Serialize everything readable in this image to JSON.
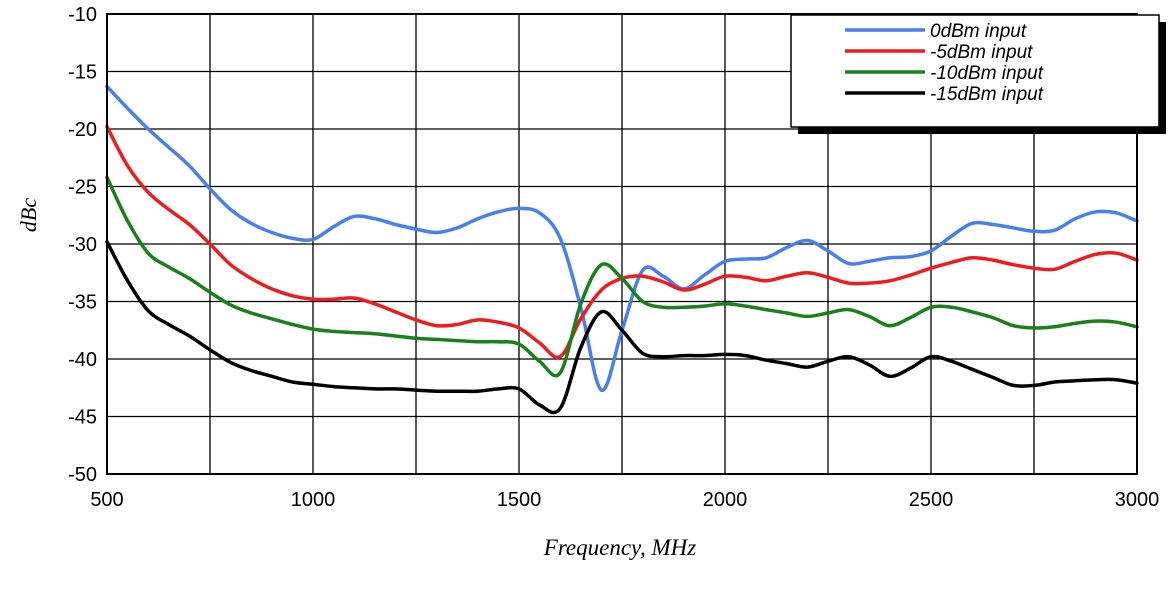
{
  "chart_data": {
    "type": "line",
    "xlabel": "Frequency, MHz",
    "ylabel": "dBc",
    "xlim": [
      500,
      3000
    ],
    "ylim": [
      -50,
      -10
    ],
    "x_ticks": [
      500,
      1000,
      1500,
      2000,
      2500,
      3000
    ],
    "x_tick_labels": [
      "500",
      "1000",
      "1500",
      "2000",
      "2500",
      "3000"
    ],
    "y_ticks": [
      -10,
      -15,
      -20,
      -25,
      -30,
      -35,
      -40,
      -45,
      -50
    ],
    "y_tick_labels": [
      "-10",
      "-15",
      "-20",
      "-25",
      "-30",
      "-35",
      "-40",
      "-45",
      "-50"
    ],
    "x_grid_step": 250,
    "grid": true,
    "legend_position": "top-right",
    "series": [
      {
        "name": "0dBm input",
        "color": "#4a7ef0",
        "points": [
          [
            500,
            -16.3
          ],
          [
            550,
            -18.2
          ],
          [
            600,
            -20.0
          ],
          [
            650,
            -21.6
          ],
          [
            700,
            -23.2
          ],
          [
            750,
            -25.2
          ],
          [
            800,
            -27.0
          ],
          [
            850,
            -28.2
          ],
          [
            900,
            -29.0
          ],
          [
            950,
            -29.5
          ],
          [
            1000,
            -29.6
          ],
          [
            1050,
            -28.5
          ],
          [
            1100,
            -27.6
          ],
          [
            1150,
            -27.8
          ],
          [
            1200,
            -28.3
          ],
          [
            1250,
            -28.7
          ],
          [
            1300,
            -29.0
          ],
          [
            1350,
            -28.6
          ],
          [
            1400,
            -27.8
          ],
          [
            1450,
            -27.2
          ],
          [
            1500,
            -26.9
          ],
          [
            1550,
            -27.3
          ],
          [
            1600,
            -29.5
          ],
          [
            1650,
            -35.5
          ],
          [
            1700,
            -42.7
          ],
          [
            1750,
            -37.5
          ],
          [
            1800,
            -32.3
          ],
          [
            1850,
            -32.8
          ],
          [
            1900,
            -33.9
          ],
          [
            1950,
            -32.7
          ],
          [
            2000,
            -31.5
          ],
          [
            2050,
            -31.3
          ],
          [
            2100,
            -31.2
          ],
          [
            2150,
            -30.3
          ],
          [
            2200,
            -29.7
          ],
          [
            2250,
            -30.6
          ],
          [
            2300,
            -31.7
          ],
          [
            2350,
            -31.5
          ],
          [
            2400,
            -31.2
          ],
          [
            2450,
            -31.1
          ],
          [
            2500,
            -30.6
          ],
          [
            2550,
            -29.3
          ],
          [
            2600,
            -28.2
          ],
          [
            2650,
            -28.3
          ],
          [
            2700,
            -28.6
          ],
          [
            2750,
            -28.9
          ],
          [
            2800,
            -28.8
          ],
          [
            2850,
            -27.8
          ],
          [
            2900,
            -27.2
          ],
          [
            2950,
            -27.3
          ],
          [
            3000,
            -28.0
          ]
        ]
      },
      {
        "name": "-5dBm input",
        "color": "#ee1c1c",
        "points": [
          [
            500,
            -19.8
          ],
          [
            550,
            -23.2
          ],
          [
            600,
            -25.5
          ],
          [
            650,
            -27.0
          ],
          [
            700,
            -28.3
          ],
          [
            750,
            -30.0
          ],
          [
            800,
            -31.8
          ],
          [
            850,
            -33.0
          ],
          [
            900,
            -33.9
          ],
          [
            950,
            -34.5
          ],
          [
            1000,
            -34.8
          ],
          [
            1050,
            -34.8
          ],
          [
            1100,
            -34.7
          ],
          [
            1150,
            -35.2
          ],
          [
            1200,
            -35.9
          ],
          [
            1250,
            -36.6
          ],
          [
            1300,
            -37.1
          ],
          [
            1350,
            -37.0
          ],
          [
            1400,
            -36.6
          ],
          [
            1450,
            -36.8
          ],
          [
            1500,
            -37.3
          ],
          [
            1550,
            -38.6
          ],
          [
            1600,
            -39.8
          ],
          [
            1650,
            -36.5
          ],
          [
            1700,
            -34.0
          ],
          [
            1750,
            -33.0
          ],
          [
            1800,
            -32.8
          ],
          [
            1850,
            -33.3
          ],
          [
            1900,
            -34.0
          ],
          [
            1950,
            -33.5
          ],
          [
            2000,
            -32.8
          ],
          [
            2050,
            -32.9
          ],
          [
            2100,
            -33.2
          ],
          [
            2150,
            -32.8
          ],
          [
            2200,
            -32.5
          ],
          [
            2250,
            -32.9
          ],
          [
            2300,
            -33.4
          ],
          [
            2350,
            -33.4
          ],
          [
            2400,
            -33.2
          ],
          [
            2450,
            -32.7
          ],
          [
            2500,
            -32.1
          ],
          [
            2550,
            -31.6
          ],
          [
            2600,
            -31.2
          ],
          [
            2650,
            -31.4
          ],
          [
            2700,
            -31.8
          ],
          [
            2750,
            -32.1
          ],
          [
            2800,
            -32.2
          ],
          [
            2850,
            -31.5
          ],
          [
            2900,
            -30.9
          ],
          [
            2950,
            -30.8
          ],
          [
            3000,
            -31.4
          ]
        ]
      },
      {
        "name": "-10dBm input",
        "color": "#1b7f1b",
        "points": [
          [
            500,
            -24.2
          ],
          [
            550,
            -28.0
          ],
          [
            600,
            -30.8
          ],
          [
            650,
            -32.0
          ],
          [
            700,
            -33.0
          ],
          [
            750,
            -34.2
          ],
          [
            800,
            -35.3
          ],
          [
            850,
            -36.0
          ],
          [
            900,
            -36.5
          ],
          [
            950,
            -37.0
          ],
          [
            1000,
            -37.4
          ],
          [
            1050,
            -37.6
          ],
          [
            1100,
            -37.7
          ],
          [
            1150,
            -37.8
          ],
          [
            1200,
            -38.0
          ],
          [
            1250,
            -38.2
          ],
          [
            1300,
            -38.3
          ],
          [
            1350,
            -38.4
          ],
          [
            1400,
            -38.5
          ],
          [
            1450,
            -38.5
          ],
          [
            1500,
            -38.7
          ],
          [
            1550,
            -40.2
          ],
          [
            1600,
            -41.2
          ],
          [
            1650,
            -35.2
          ],
          [
            1700,
            -31.8
          ],
          [
            1750,
            -33.0
          ],
          [
            1800,
            -35.0
          ],
          [
            1850,
            -35.5
          ],
          [
            1900,
            -35.5
          ],
          [
            1950,
            -35.4
          ],
          [
            2000,
            -35.2
          ],
          [
            2050,
            -35.4
          ],
          [
            2100,
            -35.7
          ],
          [
            2150,
            -36.0
          ],
          [
            2200,
            -36.3
          ],
          [
            2250,
            -36.0
          ],
          [
            2300,
            -35.7
          ],
          [
            2350,
            -36.3
          ],
          [
            2400,
            -37.1
          ],
          [
            2450,
            -36.4
          ],
          [
            2500,
            -35.5
          ],
          [
            2550,
            -35.5
          ],
          [
            2600,
            -35.9
          ],
          [
            2650,
            -36.4
          ],
          [
            2700,
            -37.1
          ],
          [
            2750,
            -37.3
          ],
          [
            2800,
            -37.2
          ],
          [
            2850,
            -36.9
          ],
          [
            2900,
            -36.7
          ],
          [
            2950,
            -36.8
          ],
          [
            3000,
            -37.2
          ]
        ]
      },
      {
        "name": "-15dBm input",
        "color": "#000000",
        "points": [
          [
            500,
            -29.8
          ],
          [
            550,
            -33.2
          ],
          [
            600,
            -35.8
          ],
          [
            650,
            -37.0
          ],
          [
            700,
            -38.0
          ],
          [
            750,
            -39.2
          ],
          [
            800,
            -40.3
          ],
          [
            850,
            -41.0
          ],
          [
            900,
            -41.5
          ],
          [
            950,
            -42.0
          ],
          [
            1000,
            -42.2
          ],
          [
            1050,
            -42.4
          ],
          [
            1100,
            -42.5
          ],
          [
            1150,
            -42.6
          ],
          [
            1200,
            -42.6
          ],
          [
            1250,
            -42.7
          ],
          [
            1300,
            -42.8
          ],
          [
            1350,
            -42.8
          ],
          [
            1400,
            -42.8
          ],
          [
            1450,
            -42.6
          ],
          [
            1500,
            -42.6
          ],
          [
            1550,
            -44.0
          ],
          [
            1600,
            -44.3
          ],
          [
            1650,
            -39.0
          ],
          [
            1700,
            -35.9
          ],
          [
            1750,
            -37.5
          ],
          [
            1800,
            -39.5
          ],
          [
            1850,
            -39.8
          ],
          [
            1900,
            -39.7
          ],
          [
            1950,
            -39.7
          ],
          [
            2000,
            -39.6
          ],
          [
            2050,
            -39.7
          ],
          [
            2100,
            -40.1
          ],
          [
            2150,
            -40.4
          ],
          [
            2200,
            -40.7
          ],
          [
            2250,
            -40.2
          ],
          [
            2300,
            -39.8
          ],
          [
            2350,
            -40.5
          ],
          [
            2400,
            -41.5
          ],
          [
            2450,
            -40.8
          ],
          [
            2500,
            -39.8
          ],
          [
            2550,
            -40.2
          ],
          [
            2600,
            -40.9
          ],
          [
            2650,
            -41.6
          ],
          [
            2700,
            -42.3
          ],
          [
            2750,
            -42.3
          ],
          [
            2800,
            -42.0
          ],
          [
            2850,
            -41.9
          ],
          [
            2900,
            -41.8
          ],
          [
            2950,
            -41.8
          ],
          [
            3000,
            -42.1
          ]
        ]
      }
    ]
  }
}
